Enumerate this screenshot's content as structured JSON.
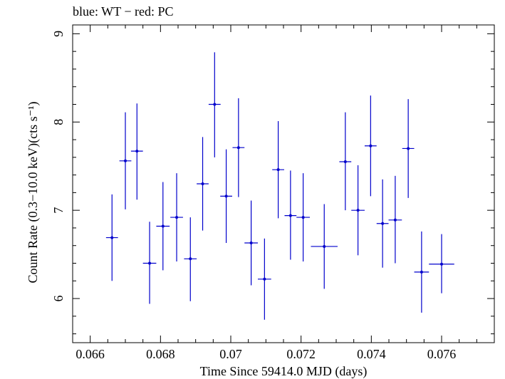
{
  "chart_data": {
    "type": "scatter",
    "title": "blue: WT − red: PC",
    "xlabel": "Time Since 59414.0 MJD (days)",
    "ylabel": "Count Rate (0.3−10.0 keV)(cts s⁻¹)",
    "xlim": [
      0.0655,
      0.0775
    ],
    "ylim": [
      5.5,
      9.1
    ],
    "x_ticks": [
      0.066,
      0.068,
      0.07,
      0.072,
      0.074,
      0.076
    ],
    "x_tick_labels": [
      "0.066",
      "0.068",
      "0.07",
      "0.072",
      "0.074",
      "0.076"
    ],
    "y_ticks": [
      6,
      7,
      8,
      9
    ],
    "y_tick_labels": [
      "6",
      "7",
      "8",
      "9"
    ],
    "grid": false,
    "series": [
      {
        "color": "#0000cc",
        "points": [
          {
            "x": 0.06662,
            "y": 6.69,
            "xerr": 0.00017,
            "ylo": 6.2,
            "yhi": 7.18
          },
          {
            "x": 0.067,
            "y": 7.56,
            "xerr": 0.00017,
            "ylo": 7.01,
            "yhi": 8.11
          },
          {
            "x": 0.06733,
            "y": 7.67,
            "xerr": 0.00017,
            "ylo": 7.12,
            "yhi": 8.21
          },
          {
            "x": 0.06769,
            "y": 6.4,
            "xerr": 0.00019,
            "ylo": 5.94,
            "yhi": 6.87
          },
          {
            "x": 0.06807,
            "y": 6.82,
            "xerr": 0.00019,
            "ylo": 6.32,
            "yhi": 7.32
          },
          {
            "x": 0.06846,
            "y": 6.92,
            "xerr": 0.00018,
            "ylo": 6.42,
            "yhi": 7.42
          },
          {
            "x": 0.06885,
            "y": 6.45,
            "xerr": 0.00018,
            "ylo": 5.97,
            "yhi": 6.92
          },
          {
            "x": 0.0692,
            "y": 7.3,
            "xerr": 0.00017,
            "ylo": 6.77,
            "yhi": 7.83
          },
          {
            "x": 0.06954,
            "y": 8.2,
            "xerr": 0.00017,
            "ylo": 7.6,
            "yhi": 8.79
          },
          {
            "x": 0.06987,
            "y": 7.16,
            "xerr": 0.00017,
            "ylo": 6.63,
            "yhi": 7.69
          },
          {
            "x": 0.07022,
            "y": 7.71,
            "xerr": 0.00017,
            "ylo": 7.15,
            "yhi": 8.27
          },
          {
            "x": 0.07058,
            "y": 6.63,
            "xerr": 0.00019,
            "ylo": 6.15,
            "yhi": 7.11
          },
          {
            "x": 0.07096,
            "y": 6.22,
            "xerr": 0.00019,
            "ylo": 5.76,
            "yhi": 6.68
          },
          {
            "x": 0.07135,
            "y": 7.46,
            "xerr": 0.00017,
            "ylo": 6.91,
            "yhi": 8.01
          },
          {
            "x": 0.0717,
            "y": 6.94,
            "xerr": 0.00017,
            "ylo": 6.44,
            "yhi": 7.45
          },
          {
            "x": 0.07206,
            "y": 6.92,
            "xerr": 0.00019,
            "ylo": 6.42,
            "yhi": 7.42
          },
          {
            "x": 0.07266,
            "y": 6.59,
            "xerr": 0.00038,
            "ylo": 6.11,
            "yhi": 7.07
          },
          {
            "x": 0.07326,
            "y": 7.55,
            "xerr": 0.00017,
            "ylo": 7.0,
            "yhi": 8.11
          },
          {
            "x": 0.07362,
            "y": 7.0,
            "xerr": 0.00019,
            "ylo": 6.49,
            "yhi": 7.51
          },
          {
            "x": 0.07398,
            "y": 7.73,
            "xerr": 0.00017,
            "ylo": 7.16,
            "yhi": 8.3
          },
          {
            "x": 0.07432,
            "y": 6.85,
            "xerr": 0.00017,
            "ylo": 6.35,
            "yhi": 7.35
          },
          {
            "x": 0.07468,
            "y": 6.89,
            "xerr": 0.00019,
            "ylo": 6.4,
            "yhi": 7.39
          },
          {
            "x": 0.07505,
            "y": 7.7,
            "xerr": 0.00017,
            "ylo": 7.14,
            "yhi": 8.26
          },
          {
            "x": 0.07543,
            "y": 6.3,
            "xerr": 0.00021,
            "ylo": 5.84,
            "yhi": 6.76
          },
          {
            "x": 0.076,
            "y": 6.39,
            "xerr": 0.00036,
            "ylo": 6.06,
            "yhi": 6.73
          }
        ]
      }
    ]
  }
}
